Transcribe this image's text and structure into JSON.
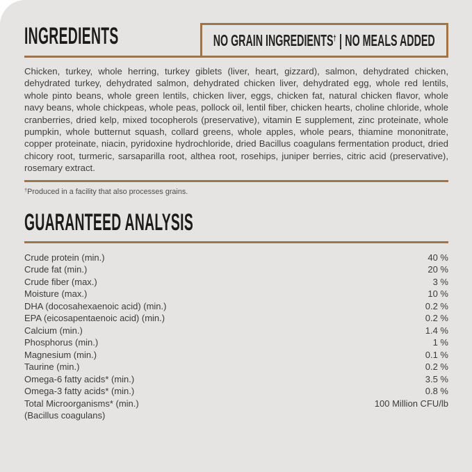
{
  "colors": {
    "accent_brown": "#a0744a",
    "background": "#e5e4e2",
    "heading_text": "#1b1b1b",
    "body_text": "#3e3e3e",
    "footnote_text": "#4c4c4c"
  },
  "ingredients": {
    "title": "INGREDIENTS",
    "badge": {
      "part1": "NO GRAIN INGREDIENTS",
      "dagger": "†",
      "separator": "|",
      "part2": "NO MEALS ADDED"
    },
    "body": "Chicken, turkey, whole herring, turkey giblets (liver, heart, gizzard), salmon, dehydrated chicken, dehydrated turkey, dehydrated salmon, dehydrated chicken liver, dehydrated egg, whole red lentils, whole pinto beans, whole green lentils, chicken liver, eggs, chicken fat, natural chicken flavor, whole navy beans, whole chickpeas, whole peas, pollock oil, lentil fiber, chicken hearts, choline chloride, whole cranberries, dried kelp, mixed tocopherols (preservative), vitamin E supplement, zinc proteinate, whole pumpkin, whole butternut squash, collard greens, whole apples, whole pears, thiamine mononitrate, copper proteinate, niacin, pyridoxine hydrochloride, dried Bacillus coagulans fermentation product, dried chicory root, turmeric, sarsaparilla root, althea root, rosehips, juniper berries, citric acid (preservative), rosemary extract.",
    "footnote_dagger": "†",
    "footnote_text": "Produced in a facility that also processes grains."
  },
  "guaranteed_analysis": {
    "title": "GUARANTEED ANALYSIS",
    "rows": [
      {
        "label": "Crude protein (min.)",
        "value": "40 %"
      },
      {
        "label": "Crude fat (min.)",
        "value": "20 %"
      },
      {
        "label": "Crude fiber (max.)",
        "value": "3 %"
      },
      {
        "label": "Moisture (max.)",
        "value": "10 %"
      },
      {
        "label": "DHA (docosahexaenoic acid) (min.)",
        "value": "0.2 %"
      },
      {
        "label": "EPA (eicosapentaenoic acid) (min.)",
        "value": "0.2 %"
      },
      {
        "label": "Calcium (min.)",
        "value": "1.4 %"
      },
      {
        "label": "Phosphorus (min.)",
        "value": "1 %"
      },
      {
        "label": "Magnesium (min.)",
        "value": "0.1 %"
      },
      {
        "label": "Taurine (min.)",
        "value": "0.2 %"
      },
      {
        "label": "Omega-6 fatty acids* (min.)",
        "value": "3.5 %"
      },
      {
        "label": "Omega-3 fatty acids* (min.)",
        "value": "0.8 %"
      },
      {
        "label": "Total Microorganisms* (min.)",
        "value": "100 Million CFU/lb"
      },
      {
        "label": "(Bacillus coagulans)",
        "value": ""
      }
    ]
  }
}
